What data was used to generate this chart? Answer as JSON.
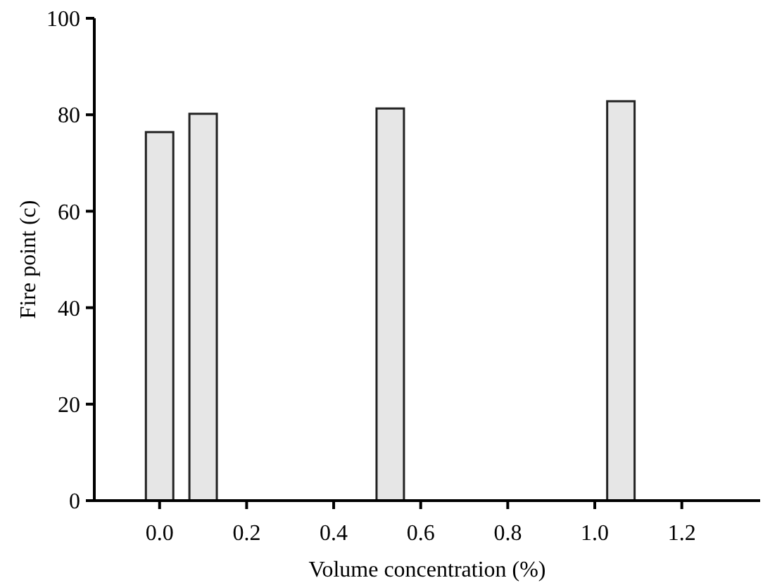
{
  "chart_data": {
    "type": "bar",
    "xlabel": "Volume concentration (%)",
    "ylabel": "Fire point (c)",
    "x": [
      0,
      0.1,
      0.53,
      1.06
    ],
    "values": [
      76.4,
      80.2,
      81.3,
      82.8
    ],
    "color": "#e6e6e6",
    "xlim": [
      -0.15,
      1.38
    ],
    "xticks": [
      {
        "value": 0,
        "label": "0.0"
      },
      {
        "value": 0.2,
        "label": "0.2"
      },
      {
        "value": 0.4,
        "label": "0.4"
      },
      {
        "value": 0.6,
        "label": "0.6"
      },
      {
        "value": 0.8,
        "label": "0.8"
      },
      {
        "value": 1,
        "label": "1.0"
      },
      {
        "value": 1.2,
        "label": "1.2"
      }
    ],
    "ylim": [
      0,
      100
    ],
    "yticks": [
      0,
      20,
      40,
      60,
      80,
      100
    ],
    "grid": false
  }
}
